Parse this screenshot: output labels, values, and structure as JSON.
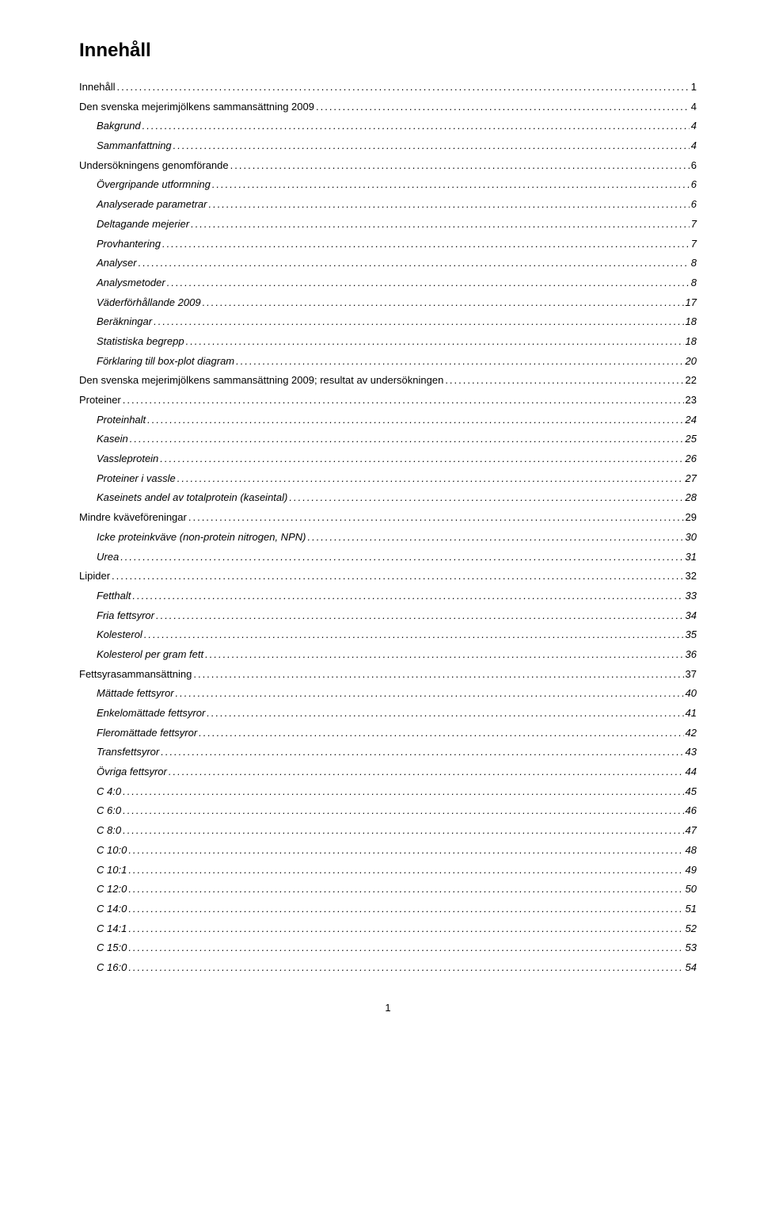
{
  "title": "Innehåll",
  "page_number": "1",
  "toc": [
    {
      "label": "Innehåll",
      "page": "1",
      "level": 0
    },
    {
      "label": "Den svenska mejerimjölkens sammansättning 2009",
      "page": "4",
      "level": 0
    },
    {
      "label": "Bakgrund",
      "page": "4",
      "level": 1
    },
    {
      "label": "Sammanfattning",
      "page": "4",
      "level": 1
    },
    {
      "label": "Undersökningens genomförande",
      "page": "6",
      "level": 0
    },
    {
      "label": "Övergripande utformning",
      "page": "6",
      "level": 1
    },
    {
      "label": "Analyserade parametrar",
      "page": "6",
      "level": 1
    },
    {
      "label": "Deltagande mejerier",
      "page": "7",
      "level": 1
    },
    {
      "label": "Provhantering",
      "page": "7",
      "level": 1
    },
    {
      "label": "Analyser",
      "page": "8",
      "level": 1
    },
    {
      "label": "Analysmetoder",
      "page": "8",
      "level": 1
    },
    {
      "label": "Väderförhållande 2009",
      "page": "17",
      "level": 1
    },
    {
      "label": "Beräkningar",
      "page": "18",
      "level": 1
    },
    {
      "label": "Statistiska begrepp",
      "page": "18",
      "level": 1
    },
    {
      "label": "Förklaring till box-plot diagram",
      "page": "20",
      "level": 1
    },
    {
      "label": "Den svenska mejerimjölkens sammansättning 2009; resultat av undersökningen",
      "page": "22",
      "level": 0
    },
    {
      "label": "Proteiner",
      "page": "23",
      "level": 0
    },
    {
      "label": "Proteinhalt",
      "page": "24",
      "level": 1
    },
    {
      "label": "Kasein",
      "page": "25",
      "level": 1
    },
    {
      "label": "Vassleprotein",
      "page": "26",
      "level": 1
    },
    {
      "label": "Proteiner i vassle",
      "page": "27",
      "level": 1
    },
    {
      "label": "Kaseinets andel av totalprotein (kaseintal)",
      "page": "28",
      "level": 1
    },
    {
      "label": "Mindre kväveföreningar",
      "page": "29",
      "level": 0
    },
    {
      "label": "Icke proteinkväve (non-protein nitrogen, NPN)",
      "page": "30",
      "level": 1
    },
    {
      "label": "Urea",
      "page": "31",
      "level": 1
    },
    {
      "label": "Lipider",
      "page": "32",
      "level": 0
    },
    {
      "label": "Fetthalt",
      "page": "33",
      "level": 1
    },
    {
      "label": "Fria fettsyror",
      "page": "34",
      "level": 1
    },
    {
      "label": "Kolesterol",
      "page": "35",
      "level": 1
    },
    {
      "label": "Kolesterol per gram fett",
      "page": "36",
      "level": 1
    },
    {
      "label": "Fettsyrasammansättning",
      "page": "37",
      "level": 0
    },
    {
      "label": "Mättade fettsyror",
      "page": "40",
      "level": 1
    },
    {
      "label": "Enkelomättade fettsyror",
      "page": "41",
      "level": 1
    },
    {
      "label": "Fleromättade fettsyror",
      "page": "42",
      "level": 1
    },
    {
      "label": "Transfettsyror",
      "page": "43",
      "level": 1
    },
    {
      "label": "Övriga fettsyror",
      "page": "44",
      "level": 1
    },
    {
      "label": "C 4:0",
      "page": "45",
      "level": 1
    },
    {
      "label": "C 6:0",
      "page": "46",
      "level": 1
    },
    {
      "label": "C 8:0",
      "page": "47",
      "level": 1
    },
    {
      "label": "C 10:0",
      "page": "48",
      "level": 1
    },
    {
      "label": "C 10:1",
      "page": "49",
      "level": 1
    },
    {
      "label": "C 12:0",
      "page": "50",
      "level": 1
    },
    {
      "label": "C 14:0",
      "page": "51",
      "level": 1
    },
    {
      "label": "C 14:1",
      "page": "52",
      "level": 1
    },
    {
      "label": "C 15:0",
      "page": "53",
      "level": 1
    },
    {
      "label": "C 16:0",
      "page": "54",
      "level": 1
    }
  ]
}
